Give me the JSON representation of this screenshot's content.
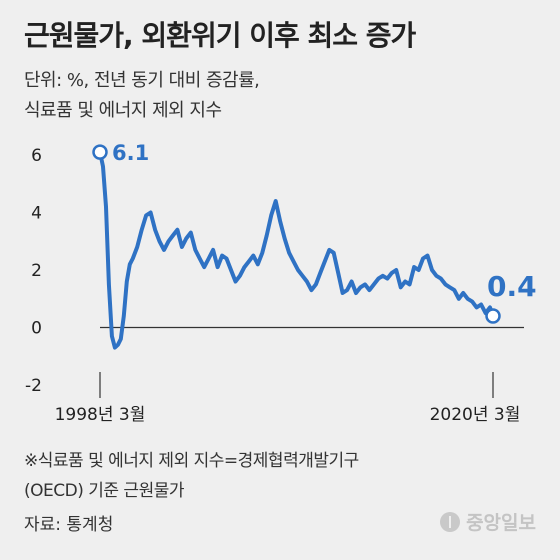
{
  "title": "근원물가, 외환위기 이후 최소 증가",
  "subtitle_lines": [
    "단위: %, 전년 동기 대비 증감률,",
    "식료품 및 에너지 제외 지수"
  ],
  "note_lines": [
    "※식료품 및 에너지 제외 지수=경제협력개발기구",
    "(OECD) 기준 근원물가"
  ],
  "source": "자료: 통계청",
  "logo_text": "중앙일보",
  "colors": {
    "line": "#2f72c4",
    "text": "#222222",
    "axis": "#333333",
    "background": "#efefef"
  },
  "chart_data": {
    "type": "line",
    "x_start": "1998년 3월",
    "x_end": "2020년 3월",
    "x_tick_labels": [
      "1998년 3월",
      "2020년 3월"
    ],
    "y_ticks": [
      6,
      4,
      2,
      0,
      -2
    ],
    "ylim": [
      -2,
      6
    ],
    "grid": false,
    "legend": "none",
    "annotations": [
      {
        "label": "6.1",
        "x": "1998-03",
        "y": 6.1
      },
      {
        "label": "0.4",
        "x": "2020-03",
        "y": 0.4
      }
    ],
    "series": [
      {
        "x": [
          "1998-03",
          "1998-05",
          "1998-07",
          "1998-09",
          "1998-11",
          "1999-01",
          "1999-03",
          "1999-05",
          "1999-07",
          "1999-09",
          "1999-11",
          "2000-01",
          "2000-04",
          "2000-07",
          "2000-10",
          "2001-01",
          "2001-04",
          "2001-07",
          "2001-10",
          "2002-01",
          "2002-04",
          "2002-07",
          "2002-10",
          "2003-01",
          "2003-04",
          "2003-07",
          "2003-10",
          "2004-01",
          "2004-04",
          "2004-07",
          "2004-10",
          "2005-01",
          "2005-04",
          "2005-07",
          "2005-10",
          "2006-01",
          "2006-04",
          "2006-07",
          "2006-10",
          "2007-01",
          "2007-04",
          "2007-07",
          "2007-10",
          "2008-01",
          "2008-04",
          "2008-07",
          "2008-10",
          "2009-01",
          "2009-04",
          "2009-07",
          "2009-10",
          "2010-01",
          "2010-04",
          "2010-07",
          "2010-10",
          "2011-01",
          "2011-04",
          "2011-07",
          "2011-10",
          "2012-01",
          "2012-04",
          "2012-07",
          "2012-10",
          "2013-01",
          "2013-04",
          "2013-07",
          "2013-10",
          "2014-01",
          "2014-04",
          "2014-07",
          "2014-10",
          "2015-01",
          "2015-04",
          "2015-07",
          "2015-10",
          "2016-01",
          "2016-04",
          "2016-07",
          "2016-10",
          "2017-01",
          "2017-04",
          "2017-07",
          "2017-10",
          "2018-01",
          "2018-04",
          "2018-07",
          "2018-10",
          "2019-01",
          "2019-04",
          "2019-07",
          "2019-10",
          "2020-01",
          "2020-03"
        ],
        "values": [
          6.1,
          5.6,
          4.2,
          1.5,
          -0.3,
          -0.7,
          -0.6,
          -0.4,
          0.4,
          1.6,
          2.2,
          2.4,
          2.8,
          3.4,
          3.9,
          4.0,
          3.4,
          3.0,
          2.7,
          3.0,
          3.2,
          3.4,
          2.8,
          3.1,
          3.3,
          2.7,
          2.4,
          2.1,
          2.4,
          2.7,
          2.1,
          2.5,
          2.4,
          2.0,
          1.6,
          1.8,
          2.1,
          2.3,
          2.5,
          2.2,
          2.6,
          3.2,
          3.9,
          4.4,
          3.7,
          3.1,
          2.6,
          2.3,
          2.0,
          1.8,
          1.6,
          1.3,
          1.5,
          1.9,
          2.3,
          2.7,
          2.6,
          1.9,
          1.2,
          1.3,
          1.6,
          1.2,
          1.4,
          1.5,
          1.3,
          1.5,
          1.7,
          1.8,
          1.7,
          1.9,
          2.0,
          1.4,
          1.6,
          1.5,
          2.1,
          2.0,
          2.4,
          2.5,
          2.0,
          1.8,
          1.7,
          1.5,
          1.4,
          1.3,
          1.0,
          1.2,
          1.0,
          0.9,
          0.7,
          0.8,
          0.5,
          0.7,
          0.4
        ]
      }
    ]
  }
}
